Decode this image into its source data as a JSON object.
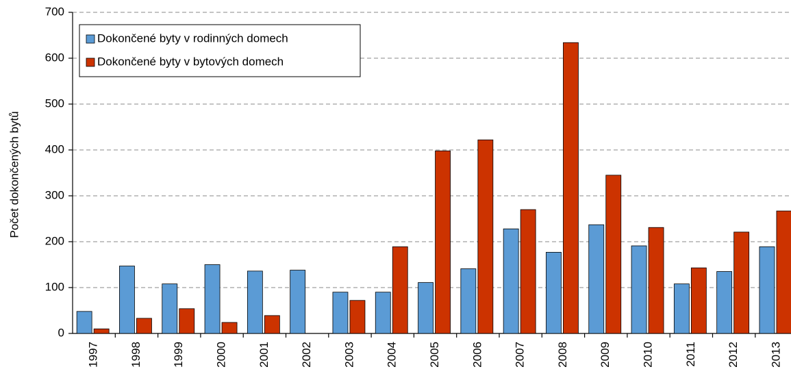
{
  "chart_data": {
    "type": "bar",
    "y_label": "Počet dokončených bytů",
    "categories": [
      "1997",
      "1998",
      "1999",
      "2000",
      "2001",
      "2002",
      "2003",
      "2004",
      "2005",
      "2006",
      "2007",
      "2008",
      "2009",
      "2010",
      "2011",
      "2012",
      "2013"
    ],
    "series": [
      {
        "name": "Dokončené byty v rodinných domech",
        "color": "#5b9bd5",
        "values": [
          48,
          147,
          108,
          150,
          136,
          138,
          90,
          90,
          111,
          141,
          228,
          177,
          237,
          191,
          108,
          135,
          189
        ]
      },
      {
        "name": "Dokončené byty v bytových domech",
        "color": "#cc3300",
        "values": [
          10,
          33,
          54,
          24,
          39,
          0,
          72,
          189,
          398,
          422,
          270,
          634,
          345,
          231,
          143,
          221,
          267
        ]
      }
    ],
    "ylim": [
      0,
      700
    ],
    "yticks": [
      0,
      100,
      200,
      300,
      400,
      500,
      600,
      700
    ],
    "grid": true,
    "legend": "top-left"
  }
}
